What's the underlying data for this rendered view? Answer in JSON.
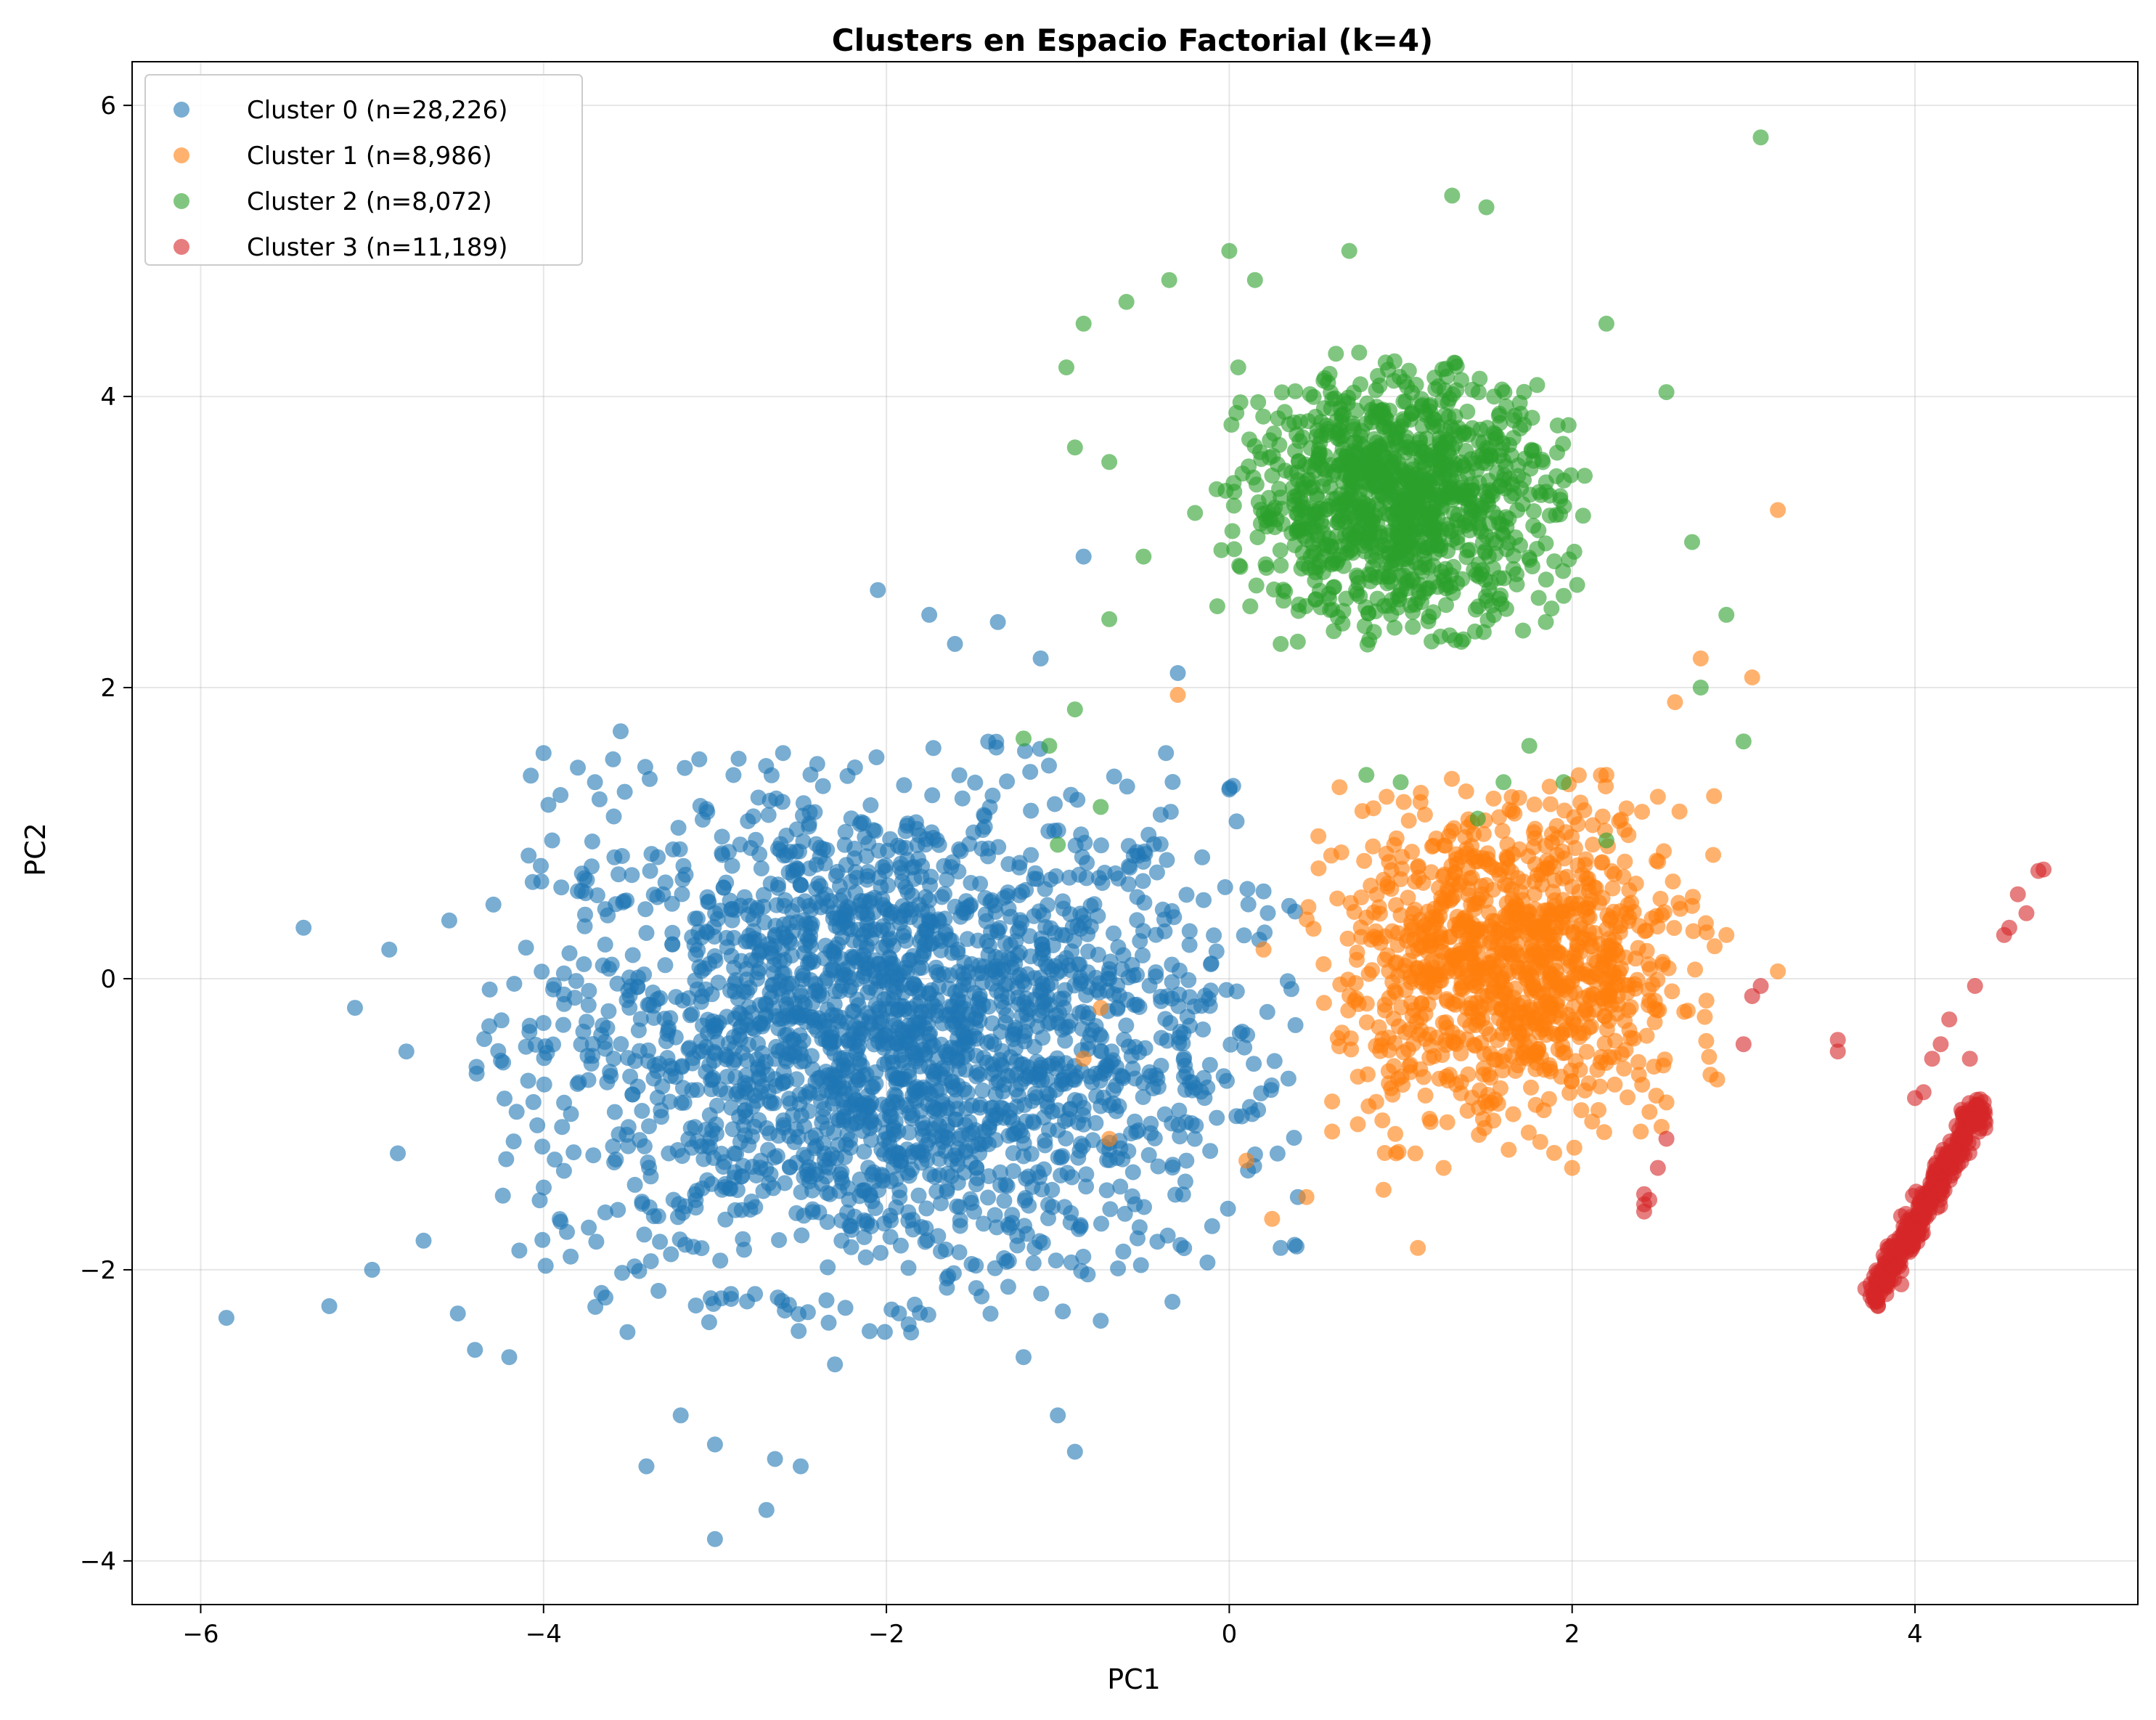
{
  "chart_data": {
    "type": "scatter",
    "title": "Clusters en Espacio Factorial (k=4)",
    "xlabel": "PC1",
    "ylabel": "PC2",
    "xlim": [
      -6.4,
      5.3
    ],
    "ylim": [
      -4.3,
      6.3
    ],
    "x_ticks": [
      -6,
      -4,
      -2,
      0,
      2,
      4
    ],
    "y_ticks": [
      -4,
      -2,
      0,
      2,
      4,
      6
    ],
    "x_tick_labels": [
      "−6",
      "−4",
      "−2",
      "0",
      "2",
      "4"
    ],
    "y_tick_labels": [
      "−4",
      "−2",
      "0",
      "2",
      "4",
      "6"
    ],
    "grid": true,
    "legend_position": "top-left",
    "series": [
      {
        "name": "Cluster 0 (n=28,226)",
        "color": "#1f77b4",
        "center": [
          -2.0,
          -0.4
        ],
        "spread": [
          1.0,
          0.85
        ],
        "points": [
          [
            -5.85,
            -2.33
          ],
          [
            -5.4,
            0.35
          ],
          [
            -5.25,
            -2.25
          ],
          [
            -5.1,
            -0.2
          ],
          [
            -5.0,
            -2.0
          ],
          [
            -4.9,
            0.2
          ],
          [
            -4.85,
            -1.2
          ],
          [
            -4.8,
            -0.5
          ],
          [
            -4.7,
            -1.8
          ],
          [
            -4.55,
            0.4
          ],
          [
            -4.5,
            -2.3
          ],
          [
            -4.4,
            -2.55
          ],
          [
            -4.2,
            -2.6
          ],
          [
            -4.0,
            1.55
          ],
          [
            -3.95,
            0.95
          ],
          [
            -3.8,
            1.45
          ],
          [
            -3.7,
            1.35
          ],
          [
            -3.55,
            1.7
          ],
          [
            -3.4,
            -3.35
          ],
          [
            -3.2,
            -3.0
          ],
          [
            -3.0,
            -3.85
          ],
          [
            -3.0,
            -3.2
          ],
          [
            -2.7,
            -3.65
          ],
          [
            -2.65,
            -3.3
          ],
          [
            -2.5,
            -3.35
          ],
          [
            -2.3,
            -2.65
          ],
          [
            -2.05,
            2.67
          ],
          [
            -1.75,
            2.5
          ],
          [
            -1.6,
            2.3
          ],
          [
            -1.35,
            2.45
          ],
          [
            -1.1,
            2.2
          ],
          [
            -1.0,
            -3.0
          ],
          [
            -0.9,
            -3.25
          ],
          [
            -0.85,
            2.9
          ],
          [
            -1.2,
            -2.6
          ],
          [
            -0.3,
            2.1
          ],
          [
            -0.25,
            -1.25
          ],
          [
            -0.1,
            -1.7
          ],
          [
            0.3,
            -1.85
          ],
          [
            0.4,
            -1.5
          ],
          [
            0.2,
            0.6
          ],
          [
            0.35,
            0.5
          ],
          [
            0.0,
            1.3
          ],
          [
            -0.55,
            -1.55
          ],
          [
            -0.75,
            -2.35
          ]
        ]
      },
      {
        "name": "Cluster 1 (n=8,986)",
        "color": "#ff7f0e",
        "center": [
          1.65,
          0.1
        ],
        "spread": [
          0.5,
          0.55
        ],
        "points": [
          [
            0.25,
            -1.65
          ],
          [
            0.45,
            -1.5
          ],
          [
            0.6,
            -1.05
          ],
          [
            0.75,
            -1.0
          ],
          [
            0.9,
            -1.45
          ],
          [
            1.1,
            -1.85
          ],
          [
            0.1,
            -1.25
          ],
          [
            0.2,
            0.2
          ],
          [
            0.55,
            0.1
          ],
          [
            0.8,
            0.42
          ],
          [
            1.05,
            -0.6
          ],
          [
            1.25,
            -1.3
          ],
          [
            2.2,
            1.4
          ],
          [
            2.5,
            1.25
          ],
          [
            2.7,
            0.5
          ],
          [
            2.9,
            0.3
          ],
          [
            3.05,
            2.07
          ],
          [
            3.2,
            3.22
          ],
          [
            3.2,
            0.05
          ],
          [
            2.55,
            -0.85
          ],
          [
            2.4,
            -1.05
          ],
          [
            2.0,
            -1.3
          ],
          [
            -0.7,
            -1.1
          ],
          [
            -0.3,
            1.95
          ],
          [
            -0.75,
            -0.2
          ],
          [
            -0.85,
            -0.55
          ],
          [
            2.75,
            2.2
          ],
          [
            2.6,
            1.9
          ]
        ]
      },
      {
        "name": "Cluster 2 (n=8,072)",
        "color": "#2ca02c",
        "center": [
          1.0,
          3.3
        ],
        "spread": [
          0.45,
          0.42
        ],
        "points": [
          [
            3.1,
            5.78
          ],
          [
            1.3,
            5.38
          ],
          [
            1.5,
            5.3
          ],
          [
            0.0,
            5.0
          ],
          [
            0.7,
            5.0
          ],
          [
            0.15,
            4.8
          ],
          [
            -0.35,
            4.8
          ],
          [
            -0.6,
            4.65
          ],
          [
            -0.85,
            4.5
          ],
          [
            -0.95,
            4.2
          ],
          [
            -0.9,
            3.65
          ],
          [
            -0.7,
            3.55
          ],
          [
            -0.5,
            2.9
          ],
          [
            2.2,
            4.5
          ],
          [
            2.55,
            4.03
          ],
          [
            2.7,
            3.0
          ],
          [
            2.9,
            2.5
          ],
          [
            3.0,
            1.63
          ],
          [
            2.75,
            2.0
          ],
          [
            0.8,
            1.4
          ],
          [
            1.0,
            1.35
          ],
          [
            -1.2,
            1.65
          ],
          [
            -1.05,
            1.6
          ],
          [
            -0.9,
            1.85
          ],
          [
            -1.0,
            0.92
          ],
          [
            -0.75,
            1.18
          ],
          [
            -0.7,
            2.47
          ],
          [
            1.45,
            1.1
          ],
          [
            1.6,
            1.35
          ],
          [
            1.75,
            1.6
          ],
          [
            1.95,
            1.35
          ],
          [
            2.2,
            0.95
          ],
          [
            -0.2,
            3.2
          ],
          [
            0.3,
            2.3
          ]
        ]
      },
      {
        "name": "Cluster 3 (n=11,189)",
        "color": "#d62728",
        "line_from": [
          3.75,
          -2.2
        ],
        "line_to": [
          4.4,
          -0.85
        ],
        "points": [
          [
            4.75,
            0.75
          ],
          [
            4.72,
            0.74
          ],
          [
            4.65,
            0.45
          ],
          [
            4.6,
            0.58
          ],
          [
            4.55,
            0.35
          ],
          [
            4.52,
            0.3
          ],
          [
            4.35,
            -0.05
          ],
          [
            4.2,
            -0.28
          ],
          [
            4.15,
            -0.45
          ],
          [
            4.1,
            -0.55
          ],
          [
            4.05,
            -0.78
          ],
          [
            4.0,
            -0.82
          ],
          [
            4.32,
            -0.55
          ],
          [
            3.55,
            -0.42
          ],
          [
            3.55,
            -0.5
          ],
          [
            2.42,
            -1.55
          ],
          [
            2.42,
            -1.6
          ],
          [
            2.45,
            -1.52
          ],
          [
            2.42,
            -1.48
          ],
          [
            3.0,
            -0.45
          ],
          [
            3.05,
            -0.12
          ],
          [
            3.1,
            -0.05
          ],
          [
            2.55,
            -1.1
          ],
          [
            2.5,
            -1.3
          ]
        ]
      }
    ]
  }
}
